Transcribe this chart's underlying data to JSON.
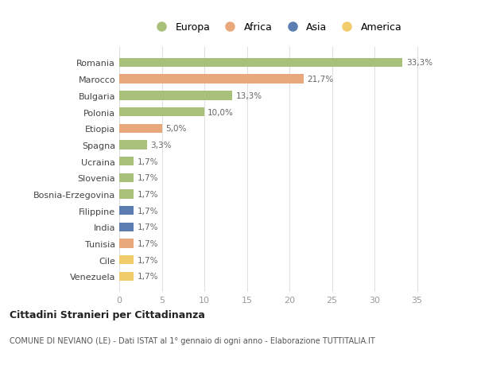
{
  "countries": [
    "Romania",
    "Marocco",
    "Bulgaria",
    "Polonia",
    "Etiopia",
    "Spagna",
    "Ucraina",
    "Slovenia",
    "Bosnia-Erzegovina",
    "Filippine",
    "India",
    "Tunisia",
    "Cile",
    "Venezuela"
  ],
  "values": [
    33.3,
    21.7,
    13.3,
    10.0,
    5.0,
    3.3,
    1.7,
    1.7,
    1.7,
    1.7,
    1.7,
    1.7,
    1.7,
    1.7
  ],
  "labels": [
    "33,3%",
    "21,7%",
    "13,3%",
    "10,0%",
    "5,0%",
    "3,3%",
    "1,7%",
    "1,7%",
    "1,7%",
    "1,7%",
    "1,7%",
    "1,7%",
    "1,7%",
    "1,7%"
  ],
  "continents": [
    "Europa",
    "Africa",
    "Europa",
    "Europa",
    "Africa",
    "Europa",
    "Europa",
    "Europa",
    "Europa",
    "Asia",
    "Asia",
    "Africa",
    "America",
    "America"
  ],
  "colors": {
    "Europa": "#a8c07a",
    "Africa": "#e8a87c",
    "Asia": "#5b7db1",
    "America": "#f0cc6a"
  },
  "legend_order": [
    "Europa",
    "Africa",
    "Asia",
    "America"
  ],
  "title": "Cittadini Stranieri per Cittadinanza",
  "subtitle": "COMUNE DI NEVIANO (LE) - Dati ISTAT al 1° gennaio di ogni anno - Elaborazione TUTTITALIA.IT",
  "xlim": [
    0,
    37
  ],
  "xticks": [
    0,
    5,
    10,
    15,
    20,
    25,
    30,
    35
  ],
  "background_color": "#ffffff",
  "grid_color": "#e0e0e0"
}
